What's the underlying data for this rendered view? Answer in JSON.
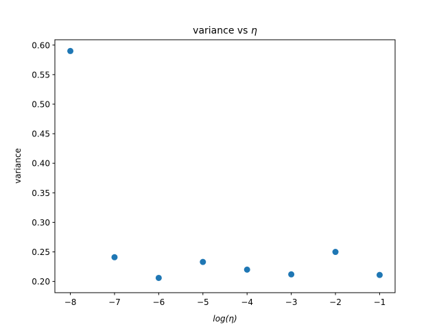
{
  "chart_data": {
    "type": "scatter",
    "title_prefix": "variance vs ",
    "title_symbol": "η",
    "xlabel": "log(η)",
    "ylabel": "variance",
    "xlim": [
      -8.35,
      -0.65
    ],
    "ylim": [
      0.181,
      0.609
    ],
    "xticks": [
      -8,
      -7,
      -6,
      -5,
      -4,
      -3,
      -2,
      -1
    ],
    "xtick_labels": [
      "−8",
      "−7",
      "−6",
      "−5",
      "−4",
      "−3",
      "−2",
      "−1"
    ],
    "yticks": [
      0.2,
      0.25,
      0.3,
      0.35,
      0.4,
      0.45,
      0.5,
      0.55,
      0.6
    ],
    "ytick_labels": [
      "0.20",
      "0.25",
      "0.30",
      "0.35",
      "0.40",
      "0.45",
      "0.50",
      "0.55",
      "0.60"
    ],
    "grid": false,
    "marker_color": "#1f77b4",
    "series": [
      {
        "x": [
          -8,
          -7,
          -6,
          -5,
          -4,
          -3,
          -2,
          -1
        ],
        "y": [
          0.59,
          0.241,
          0.206,
          0.233,
          0.22,
          0.212,
          0.25,
          0.211
        ]
      }
    ]
  }
}
